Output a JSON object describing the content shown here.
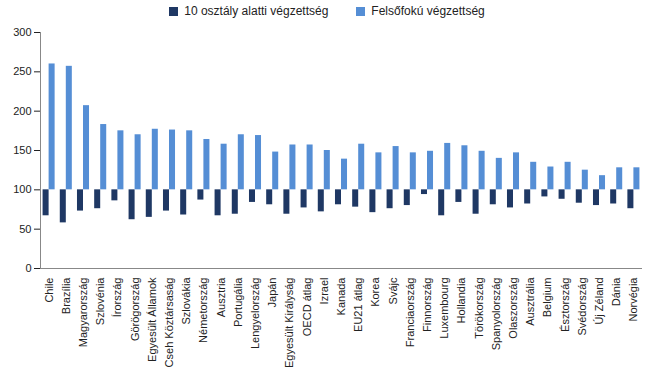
{
  "chart_data": {
    "type": "bar",
    "categories": [
      "Chile",
      "Brazília",
      "Magyarország",
      "Szlovénia",
      "Írország",
      "Görögország",
      "Egyesült Államok",
      "Cseh Köztársaság",
      "Szlovákia",
      "Németország",
      "Ausztria",
      "Portugália",
      "Lengyelország",
      "Japán",
      "Egyesült Királyság",
      "OECD átlag",
      "Izrael",
      "Kanada",
      "EU21 átlag",
      "Korea",
      "Svájc",
      "Franciaország",
      "Finnország",
      "Luxembourg",
      "Hollandia",
      "Törökország",
      "Spanyolország",
      "Olaszország",
      "Ausztrália",
      "Belgium",
      "Észtország",
      "Svédország",
      "Új Zéland",
      "Dánia",
      "Norvégia"
    ],
    "series": [
      {
        "name": "10 osztály alatti végzettség",
        "color": "#1f3864",
        "values": [
          67,
          58,
          73,
          76,
          86,
          62,
          65,
          73,
          68,
          87,
          67,
          69,
          84,
          81,
          69,
          77,
          72,
          81,
          78,
          71,
          76,
          80,
          94,
          67,
          84,
          69,
          81,
          77,
          82,
          91,
          88,
          83,
          80,
          82,
          76
        ]
      },
      {
        "name": "Felsőfokú végzettség",
        "color": "#558ed5",
        "values": [
          260,
          257,
          207,
          183,
          175,
          170,
          177,
          176,
          175,
          164,
          158,
          170,
          169,
          148,
          157,
          157,
          150,
          139,
          158,
          147,
          155,
          147,
          149,
          159,
          156,
          149,
          140,
          147,
          135,
          129,
          135,
          125,
          118,
          128,
          128
        ]
      }
    ],
    "ylim": [
      0,
      300
    ],
    "yticks": [
      0,
      50,
      100,
      150,
      200,
      250,
      300
    ],
    "grid": false,
    "legend": "top"
  }
}
